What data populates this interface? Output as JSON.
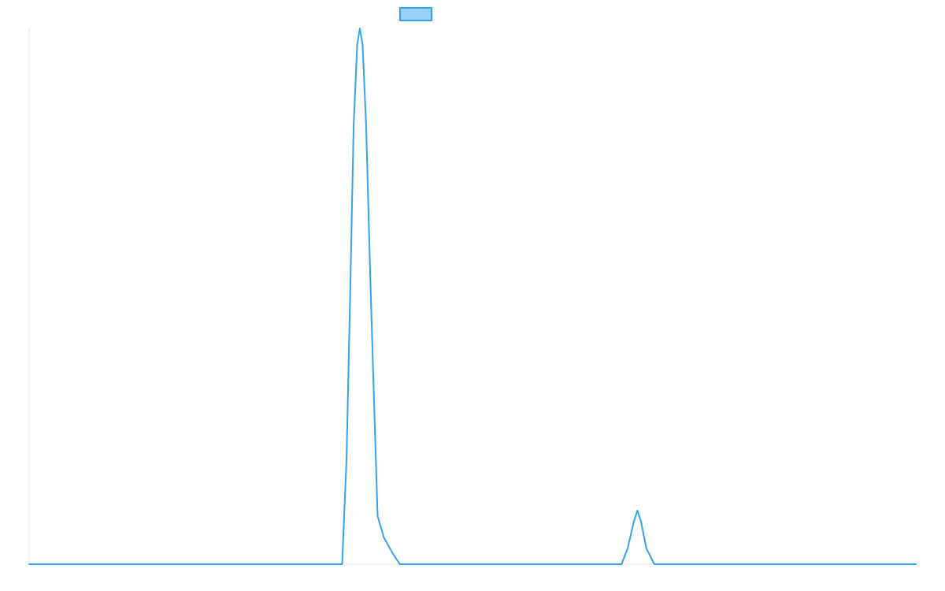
{
  "chart_data": {
    "type": "line",
    "title": "",
    "xlabel": "",
    "ylabel": "",
    "grid": false,
    "legend": "top-center",
    "xlim": [
      0,
      100
    ],
    "ylim": [
      0,
      100
    ],
    "colors": {
      "line": "#36a2eb",
      "legend_fill": "#9ad0f5",
      "axis": "#e6e6e6"
    },
    "series": [
      {
        "points": [
          [
            0,
            0
          ],
          [
            35.3,
            0
          ],
          [
            35.8,
            20
          ],
          [
            36.2,
            50
          ],
          [
            36.6,
            82
          ],
          [
            37.0,
            97
          ],
          [
            37.3,
            100
          ],
          [
            37.6,
            97
          ],
          [
            38.0,
            82
          ],
          [
            38.5,
            52
          ],
          [
            39.0,
            25
          ],
          [
            39.3,
            9
          ],
          [
            40.0,
            5
          ],
          [
            41.0,
            2
          ],
          [
            41.8,
            0
          ],
          [
            66.8,
            0
          ],
          [
            67.5,
            3
          ],
          [
            68.2,
            8
          ],
          [
            68.6,
            10
          ],
          [
            69.0,
            8
          ],
          [
            69.6,
            3
          ],
          [
            70.5,
            0
          ],
          [
            100,
            0
          ]
        ]
      }
    ]
  }
}
